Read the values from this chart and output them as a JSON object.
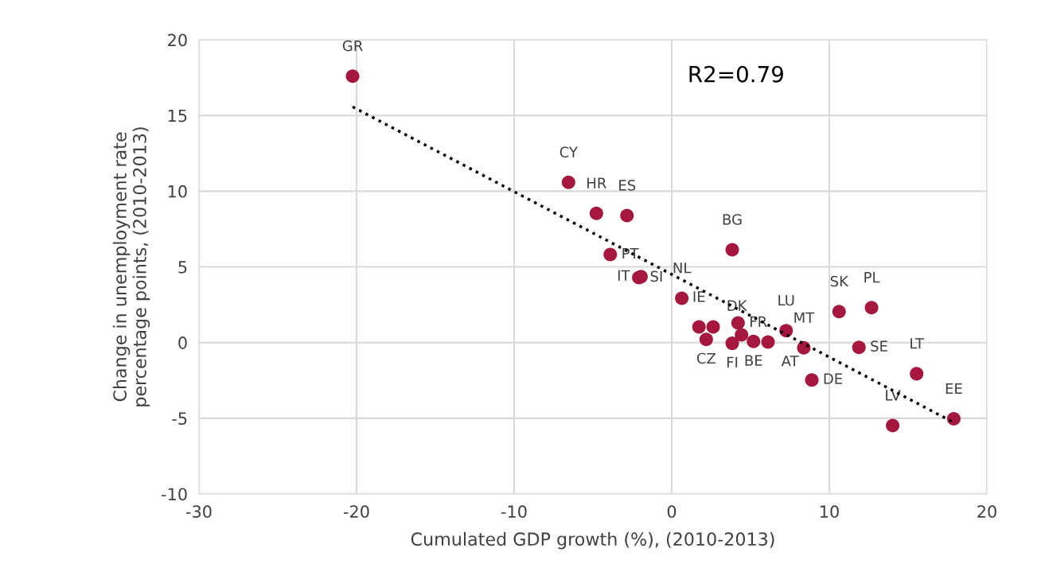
{
  "chart_data": {
    "type": "scatter",
    "xlabel": "Cumulated GDP growth (%), (2010-2013)",
    "ylabel": "Change in unemployment rate\npercentage points, (2010-2013)",
    "xlim": [
      -30,
      20
    ],
    "xticks": [
      -30,
      -20,
      -10,
      0,
      10,
      20
    ],
    "ylim": [
      -10,
      20
    ],
    "yticks": [
      -10,
      -5,
      0,
      5,
      10,
      15,
      20
    ],
    "grid": true,
    "legend": false,
    "annotations": [
      "R2=0.79"
    ],
    "series": [
      {
        "type": "scatter",
        "color": "#a6173d",
        "marker": "circle",
        "x": [
          -20.25,
          -6.55,
          -4.78,
          -2.84,
          -3.9,
          -2.09,
          -1.95,
          3.84,
          0.64,
          1.73,
          2.63,
          4.21,
          2.19,
          3.84,
          4.43,
          5.19,
          6.11,
          7.26,
          8.38,
          8.89,
          10.62,
          12.68,
          11.88,
          15.54,
          14.02,
          17.9
        ],
        "values": [
          17.6,
          10.58,
          8.53,
          8.39,
          5.81,
          4.29,
          4.35,
          6.13,
          2.93,
          1.03,
          1.03,
          1.3,
          0.21,
          -0.05,
          0.51,
          0.07,
          0.04,
          0.79,
          -0.35,
          -2.47,
          2.05,
          2.31,
          -0.32,
          -2.06,
          -5.48,
          -5.04
        ],
        "value_labels": [
          "GR",
          "CY",
          "HR",
          "ES",
          "PT",
          "SI",
          "IT",
          "BG",
          "NL",
          "IE",
          "DK",
          "FR",
          "CZ",
          "FI",
          null,
          "BE",
          "AT",
          "LU",
          "MT",
          "DE",
          "SK",
          "PL",
          "SE",
          "LT",
          "LV",
          "EE"
        ]
      },
      {
        "type": "line",
        "color": "#000000",
        "line_style": "dotted",
        "marker": "none",
        "x": [
          -20.25,
          17.88
        ],
        "values": [
          15.57,
          -5.27
        ]
      }
    ]
  }
}
